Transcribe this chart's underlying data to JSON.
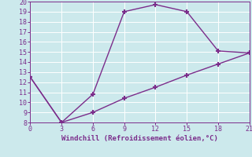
{
  "line1_x": [
    0,
    3,
    6,
    9,
    12,
    15,
    18,
    21
  ],
  "line1_y": [
    12.5,
    8.0,
    10.8,
    19.0,
    19.7,
    19.0,
    15.1,
    14.9
  ],
  "line2_x": [
    0,
    3,
    6,
    9,
    12,
    15,
    18,
    21
  ],
  "line2_y": [
    12.5,
    8.0,
    9.0,
    10.4,
    11.5,
    12.7,
    13.8,
    14.9
  ],
  "line_color": "#7b2d8b",
  "bg_color": "#cce9ec",
  "grid_color": "#b8dde0",
  "xlabel": "Windchill (Refroidissement éolien,°C)",
  "xlim": [
    0,
    21
  ],
  "ylim": [
    8,
    20
  ],
  "xticks": [
    0,
    3,
    6,
    9,
    12,
    15,
    18,
    21
  ],
  "yticks": [
    8,
    9,
    10,
    11,
    12,
    13,
    14,
    15,
    16,
    17,
    18,
    19,
    20
  ],
  "xlabel_color": "#7b2d8b",
  "tick_color": "#7b2d8b",
  "marker": "+",
  "markersize": 5,
  "linewidth": 1.0
}
